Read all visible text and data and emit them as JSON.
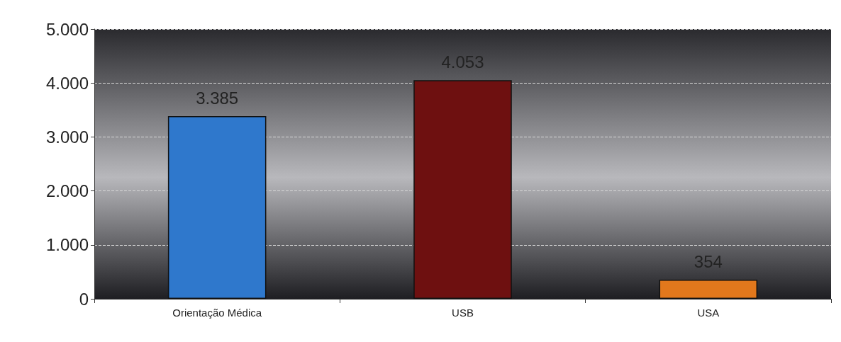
{
  "chart_data": {
    "type": "bar",
    "categories": [
      "Orientação Médica",
      "USB",
      "USA"
    ],
    "values": [
      3385,
      4053,
      354
    ],
    "colors": [
      "#2f78cc",
      "#6e1010",
      "#e2781c"
    ],
    "value_labels": [
      "3.385",
      "4.053",
      "354"
    ],
    "ylim": [
      0,
      5000
    ],
    "yticks": [
      {
        "value": 0,
        "label": "0"
      },
      {
        "value": 1000,
        "label": "1.000"
      },
      {
        "value": 2000,
        "label": "2.000"
      },
      {
        "value": 3000,
        "label": "3.000"
      },
      {
        "value": 4000,
        "label": "4.000"
      },
      {
        "value": 5000,
        "label": "5.000"
      }
    ],
    "grid": "y"
  }
}
